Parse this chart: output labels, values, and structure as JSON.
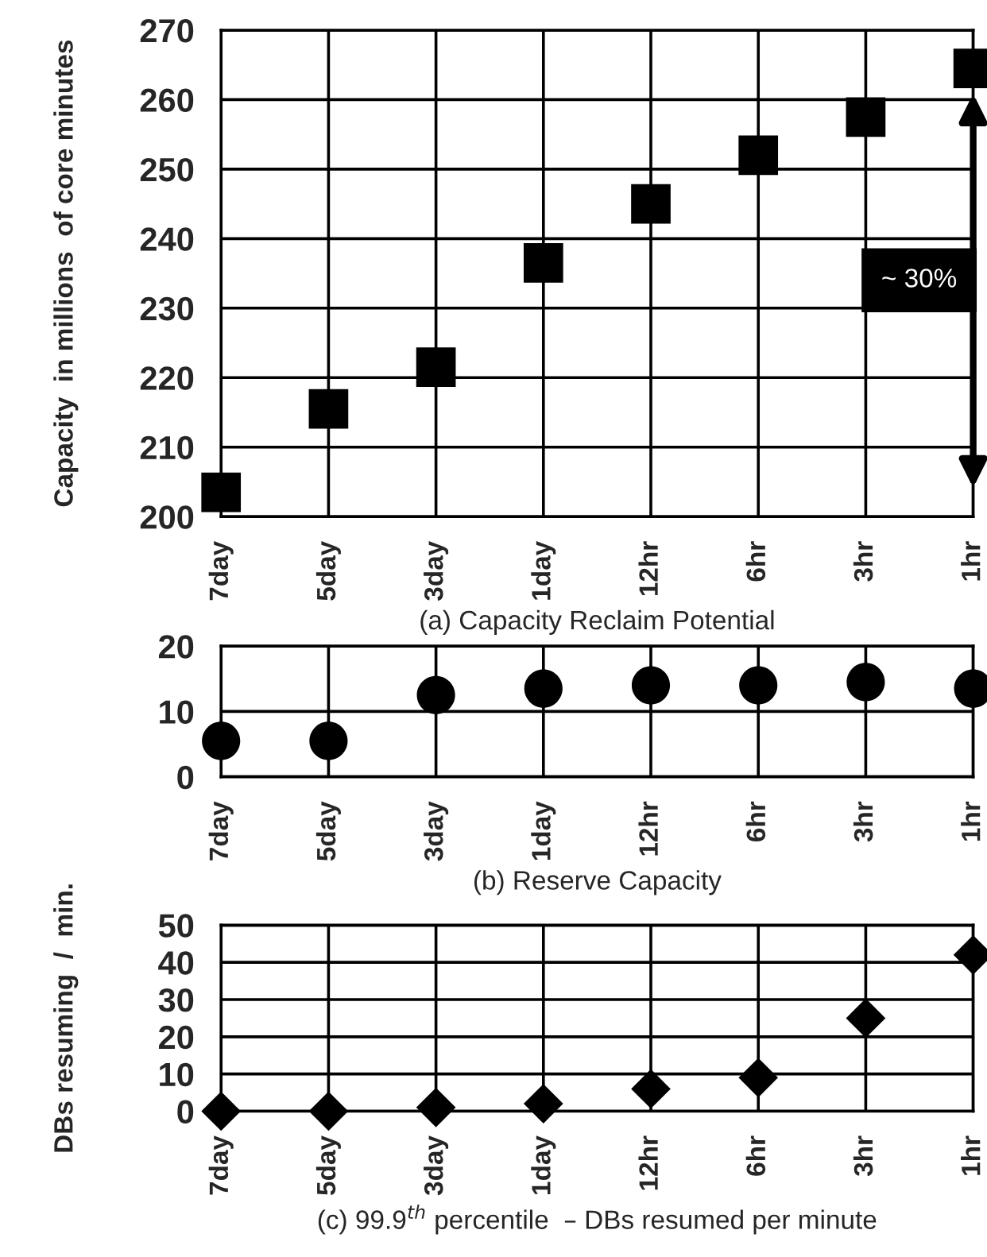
{
  "chart_data": [
    {
      "type": "scatter",
      "xlabel": "(a) Capacity Reclaim Potential",
      "ylabel": "Capacity  in millions  of core minutes",
      "categories": [
        "7day",
        "5day",
        "3day",
        "1day",
        "12hr",
        "6hr",
        "3hr",
        "1hr"
      ],
      "series": [
        {
          "color": "#000000",
          "values": [
            203.5,
            215.5,
            221.5,
            236.5,
            245,
            252,
            257.5,
            264.5
          ]
        }
      ],
      "ylim": [
        200,
        270
      ],
      "yticks": [
        200,
        210,
        220,
        230,
        240,
        250,
        260,
        270
      ],
      "grid": true,
      "marker": "square",
      "annotations": [
        "~ 30%"
      ]
    },
    {
      "type": "scatter",
      "xlabel": "(b) Reserve Capacity",
      "categories": [
        "7day",
        "5day",
        "3day",
        "1day",
        "12hr",
        "6hr",
        "3hr",
        "1hr"
      ],
      "series": [
        {
          "color": "#000000",
          "values": [
            5.5,
            5.5,
            12.5,
            13.5,
            14,
            14,
            14.5,
            13.5
          ]
        }
      ],
      "ylim": [
        0,
        20
      ],
      "yticks": [
        0,
        10,
        20
      ],
      "grid": true,
      "marker": "circle"
    },
    {
      "type": "scatter",
      "xlabel": "(c) 99.9$^{th}$ percentile  – DBs resumed per minute",
      "ylabel": "DBs resuming  /  min.",
      "categories": [
        "7day",
        "5day",
        "3day",
        "1day",
        "12hr",
        "6hr",
        "3hr",
        "1hr"
      ],
      "series": [
        {
          "color": "#000000",
          "values": [
            0,
            0,
            1,
            2,
            6,
            9,
            25,
            42
          ]
        }
      ],
      "ylim": [
        0,
        50
      ],
      "yticks": [
        0,
        10,
        20,
        30,
        40,
        50
      ],
      "grid": true,
      "marker": "diamond"
    }
  ]
}
